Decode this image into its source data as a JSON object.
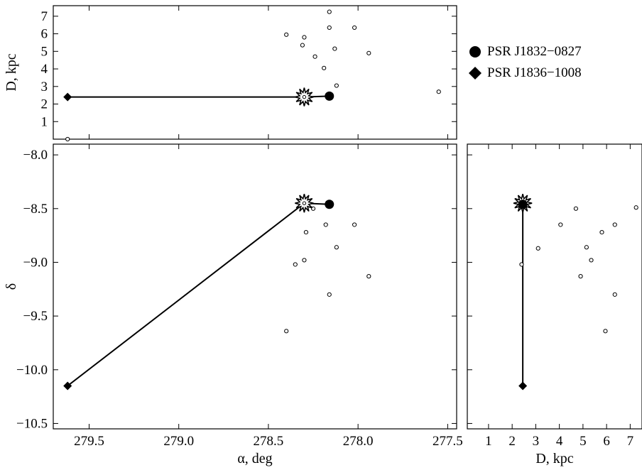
{
  "chart_data": [
    {
      "id": "top",
      "type": "scatter",
      "xlabel": "",
      "ylabel": "D, kpc",
      "xlim": [
        279.7,
        277.45
      ],
      "ylim": [
        0.0,
        7.6
      ],
      "yticks": [
        1,
        2,
        3,
        4,
        5,
        6,
        7
      ],
      "ytick_labels": [
        "1",
        "2",
        "3",
        "4",
        "5",
        "6",
        "7"
      ],
      "points": [
        {
          "x": 278.4,
          "y": 5.95
        },
        {
          "x": 278.3,
          "y": 5.8
        },
        {
          "x": 278.31,
          "y": 5.35
        },
        {
          "x": 278.24,
          "y": 4.7
        },
        {
          "x": 278.19,
          "y": 4.05
        },
        {
          "x": 278.13,
          "y": 5.15
        },
        {
          "x": 278.16,
          "y": 7.25
        },
        {
          "x": 278.16,
          "y": 6.35
        },
        {
          "x": 278.02,
          "y": 6.35
        },
        {
          "x": 277.94,
          "y": 4.9
        },
        {
          "x": 278.12,
          "y": 3.05
        },
        {
          "x": 277.55,
          "y": 2.7
        },
        {
          "x": 279.62,
          "y": 0.0
        }
      ],
      "paths": [
        {
          "from": [
            279.62,
            2.4
          ],
          "to": [
            278.3,
            2.4
          ]
        },
        {
          "from": [
            278.3,
            2.4
          ],
          "to": [
            278.16,
            2.45
          ]
        }
      ],
      "markers": [
        {
          "kind": "circle",
          "x": 278.16,
          "y": 2.45
        },
        {
          "kind": "diamond",
          "x": 279.62,
          "y": 2.4
        },
        {
          "kind": "star",
          "x": 278.3,
          "y": 2.4
        }
      ]
    },
    {
      "id": "main",
      "type": "scatter",
      "xlabel": "α, deg",
      "ylabel": "δ",
      "xlim": [
        279.7,
        277.45
      ],
      "ylim": [
        -10.55,
        -7.9
      ],
      "xticks": [
        279.5,
        279.0,
        278.5,
        278.0,
        277.5
      ],
      "xtick_labels": [
        "279.5",
        "279.0",
        "278.5",
        "278.0",
        "277.5"
      ],
      "yticks": [
        -8.0,
        -8.5,
        -9.0,
        -9.5,
        -10.0,
        -10.5
      ],
      "ytick_labels": [
        "−8.0",
        "−8.5",
        "−9.0",
        "−9.5",
        "−10.0",
        "−10.5"
      ],
      "points": [
        {
          "x": 278.25,
          "y": -8.5
        },
        {
          "x": 278.29,
          "y": -8.72
        },
        {
          "x": 278.18,
          "y": -8.65
        },
        {
          "x": 278.02,
          "y": -8.65
        },
        {
          "x": 278.12,
          "y": -8.86
        },
        {
          "x": 278.3,
          "y": -8.98
        },
        {
          "x": 278.35,
          "y": -9.02
        },
        {
          "x": 277.94,
          "y": -9.13
        },
        {
          "x": 278.16,
          "y": -9.3
        },
        {
          "x": 278.4,
          "y": -9.64
        }
      ],
      "paths": [
        {
          "from": [
            279.62,
            -10.15
          ],
          "to": [
            278.3,
            -8.45
          ]
        },
        {
          "from": [
            278.3,
            -8.45
          ],
          "to": [
            278.16,
            -8.46
          ]
        }
      ],
      "markers": [
        {
          "kind": "circle",
          "x": 278.16,
          "y": -8.46
        },
        {
          "kind": "diamond",
          "x": 279.62,
          "y": -10.15
        },
        {
          "kind": "star",
          "x": 278.3,
          "y": -8.45
        }
      ]
    },
    {
      "id": "right",
      "type": "scatter",
      "xlabel": "D, kpc",
      "ylabel": "",
      "xlim": [
        0.1,
        7.5
      ],
      "ylim": [
        -10.55,
        -7.9
      ],
      "xticks": [
        1,
        2,
        3,
        4,
        5,
        6,
        7
      ],
      "xtick_labels": [
        "1",
        "2",
        "3",
        "4",
        "5",
        "6",
        "7"
      ],
      "points": [
        {
          "x": 2.4,
          "y": -9.02
        },
        {
          "x": 3.1,
          "y": -8.87
        },
        {
          "x": 4.05,
          "y": -8.65
        },
        {
          "x": 4.7,
          "y": -8.5
        },
        {
          "x": 4.9,
          "y": -9.13
        },
        {
          "x": 5.15,
          "y": -8.86
        },
        {
          "x": 5.35,
          "y": -8.98
        },
        {
          "x": 5.8,
          "y": -8.72
        },
        {
          "x": 5.95,
          "y": -9.64
        },
        {
          "x": 6.35,
          "y": -8.65
        },
        {
          "x": 6.35,
          "y": -9.3
        },
        {
          "x": 7.25,
          "y": -8.49
        }
      ],
      "paths": [
        {
          "from": [
            2.45,
            -8.45
          ],
          "to": [
            2.45,
            -10.15
          ]
        }
      ],
      "markers": [
        {
          "kind": "star",
          "x": 2.45,
          "y": -8.45
        },
        {
          "kind": "circle",
          "x": 2.45,
          "y": -8.46
        },
        {
          "kind": "diamond",
          "x": 2.45,
          "y": -10.15
        }
      ]
    }
  ],
  "legend": [
    {
      "marker": "circle",
      "label": "PSR J1832−0827"
    },
    {
      "marker": "diamond",
      "label": "PSR J1836−1008"
    }
  ]
}
